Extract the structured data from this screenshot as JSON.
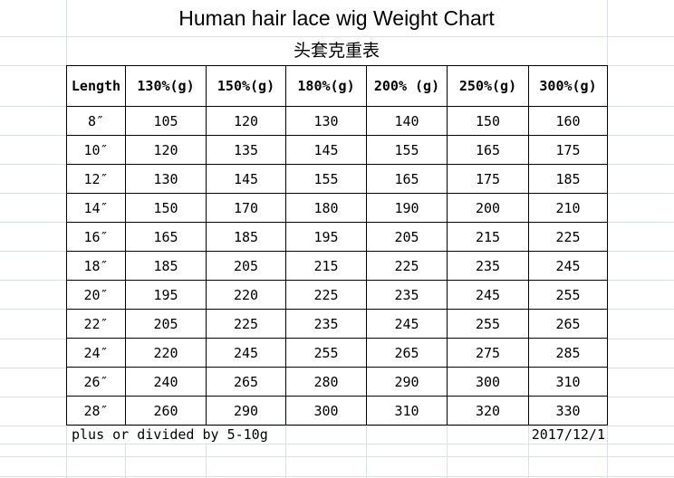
{
  "chart_data": {
    "type": "table",
    "title": "Human hair lace wig Weight Chart",
    "subtitle": "头套克重表",
    "columns": [
      "Length",
      "130%(g)",
      "150%(g)",
      "180%(g)",
      "200% (g)",
      "250%(g)",
      "300%(g)"
    ],
    "rows": [
      [
        "8″",
        "105",
        "120",
        "130",
        "140",
        "150",
        "160"
      ],
      [
        "10″",
        "120",
        "135",
        "145",
        "155",
        "165",
        "175"
      ],
      [
        "12″",
        "130",
        "145",
        "155",
        "165",
        "175",
        "185"
      ],
      [
        "14″",
        "150",
        "170",
        "180",
        "190",
        "200",
        "210"
      ],
      [
        "16″",
        "165",
        "185",
        "195",
        "205",
        "215",
        "225"
      ],
      [
        "18″",
        "185",
        "205",
        "215",
        "225",
        "235",
        "245"
      ],
      [
        "20″",
        "195",
        "220",
        "225",
        "235",
        "245",
        "255"
      ],
      [
        "22″",
        "205",
        "225",
        "235",
        "245",
        "255",
        "265"
      ],
      [
        "24″",
        "220",
        "245",
        "255",
        "265",
        "275",
        "285"
      ],
      [
        "26″",
        "240",
        "265",
        "280",
        "290",
        "300",
        "310"
      ],
      [
        "28″",
        "260",
        "290",
        "300",
        "310",
        "320",
        "330"
      ]
    ],
    "footer_note": "plus or divided by 5-10g",
    "date": "2017/12/1",
    "layout": {
      "grid": "on",
      "legend": "none"
    }
  },
  "colors": {
    "background": "#ffffff",
    "gridline": "#d8e0ec",
    "table_border": "#000000",
    "text": "#000000"
  }
}
